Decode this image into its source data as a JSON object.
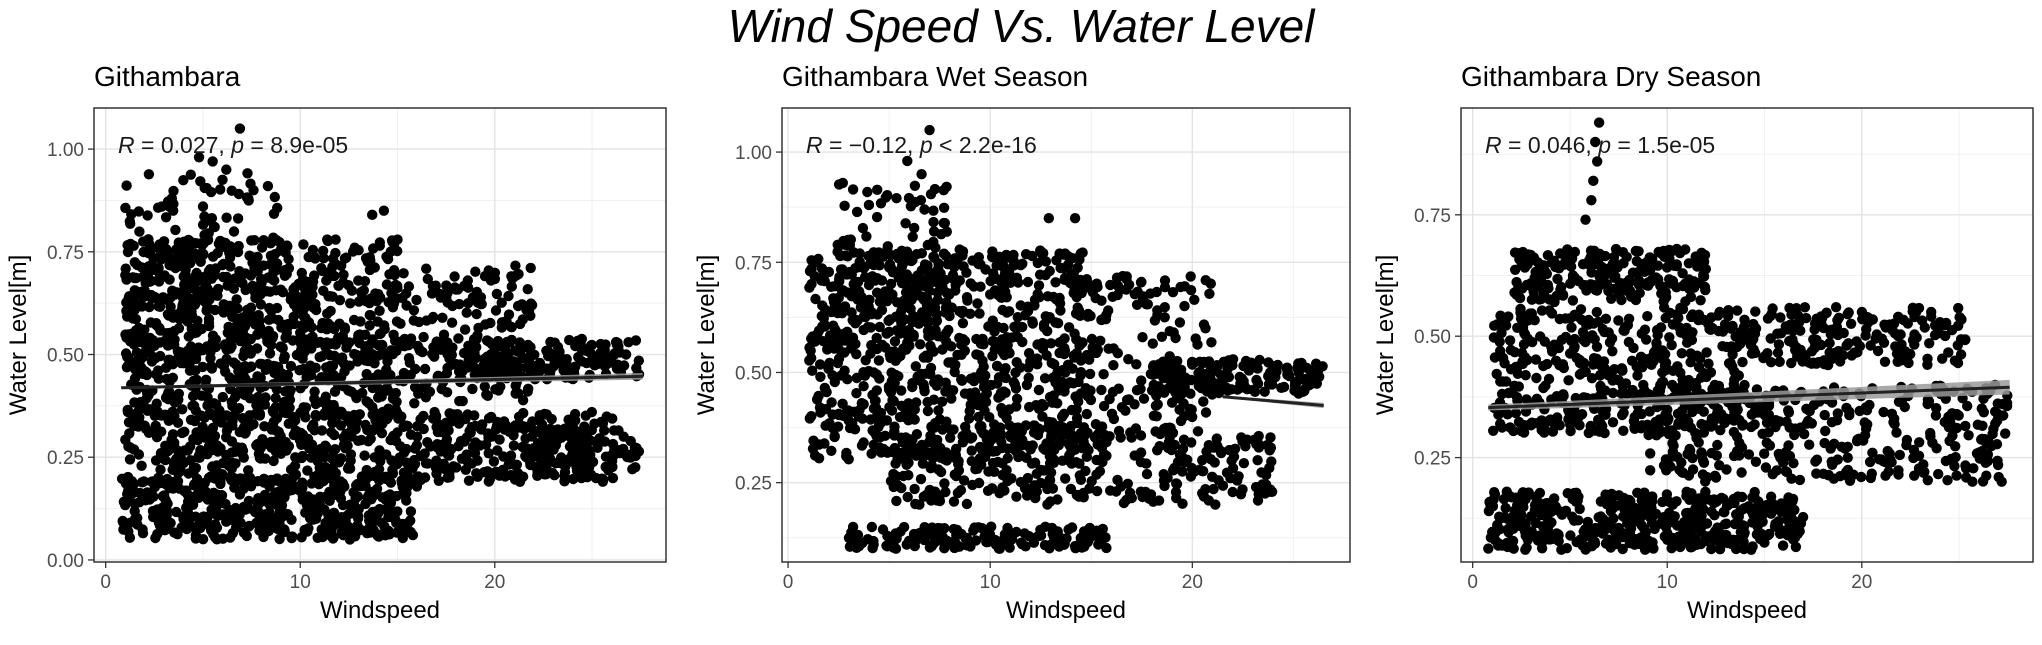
{
  "title": "Wind Speed Vs. Water Level",
  "chart_data": [
    {
      "type": "scatter",
      "title": "Githambara",
      "xlabel": "Windspeed",
      "ylabel": "Water Level[m]",
      "xlim": [
        -0.6,
        28.8
      ],
      "ylim": [
        -0.005,
        1.1
      ],
      "xticks": [
        0,
        10,
        20
      ],
      "xtick_labels": [
        "0",
        "10",
        "20"
      ],
      "yticks": [
        0,
        0.25,
        0.5,
        0.75,
        1.0
      ],
      "ytick_labels": [
        "0.00",
        "0.25",
        "0.50",
        "0.75",
        "1.00"
      ],
      "annotation": {
        "R": "0.027",
        "p_op": "=",
        "p": "8.9e-05"
      },
      "fit": {
        "x": [
          0.8,
          27.6
        ],
        "y": [
          0.419,
          0.447
        ],
        "ci": 0.008
      },
      "clusters": [
        {
          "x": [
            1.0,
            15.0
          ],
          "y": [
            0.35,
            0.78
          ],
          "n": 800
        },
        {
          "x": [
            1.0,
            9.0
          ],
          "y": [
            0.45,
            0.95
          ],
          "n": 140
        },
        {
          "x": [
            15.0,
            22.0
          ],
          "y": [
            0.38,
            0.72
          ],
          "n": 180
        },
        {
          "x": [
            18.0,
            27.5
          ],
          "y": [
            0.44,
            0.54
          ],
          "n": 170
        },
        {
          "x": [
            1.0,
            26.5
          ],
          "y": [
            0.19,
            0.36
          ],
          "n": 600
        },
        {
          "x": [
            0.8,
            16.0
          ],
          "y": [
            0.05,
            0.2
          ],
          "n": 420
        },
        {
          "x": [
            22.0,
            27.5
          ],
          "y": [
            0.22,
            0.3
          ],
          "n": 60
        }
      ],
      "outliers": [
        {
          "x": 6.9,
          "y": 1.05
        },
        {
          "x": 4.8,
          "y": 0.98
        },
        {
          "x": 6.2,
          "y": 0.95
        },
        {
          "x": 5.5,
          "y": 0.97
        },
        {
          "x": 14.3,
          "y": 0.85
        },
        {
          "x": 13.7,
          "y": 0.84
        },
        {
          "x": 3.4,
          "y": 0.88
        },
        {
          "x": 7.6,
          "y": 0.9
        }
      ]
    },
    {
      "type": "scatter",
      "title": "Githambara Wet Season",
      "xlabel": "Windspeed",
      "ylabel": "Water Level[m]",
      "xlim": [
        -0.3,
        27.8
      ],
      "ylim": [
        0.07,
        1.1
      ],
      "xticks": [
        0,
        10,
        20
      ],
      "xtick_labels": [
        "0",
        "10",
        "20"
      ],
      "yticks": [
        0.25,
        0.5,
        0.75,
        1.0
      ],
      "ytick_labels": [
        "0.25",
        "0.50",
        "0.75",
        "1.00"
      ],
      "annotation": {
        "R": "−0.12",
        "p_op": "<",
        "p": "2.2e-16"
      },
      "fit": {
        "x": [
          21.5,
          26.5
        ],
        "y": [
          0.445,
          0.425
        ],
        "ci": 0.006
      },
      "clusters": [
        {
          "x": [
            1.0,
            15.0
          ],
          "y": [
            0.3,
            0.78
          ],
          "n": 800
        },
        {
          "x": [
            2.0,
            8.0
          ],
          "y": [
            0.55,
            0.95
          ],
          "n": 120
        },
        {
          "x": [
            13.0,
            21.0
          ],
          "y": [
            0.35,
            0.72
          ],
          "n": 180
        },
        {
          "x": [
            18.0,
            26.5
          ],
          "y": [
            0.45,
            0.53
          ],
          "n": 150
        },
        {
          "x": [
            5.0,
            24.0
          ],
          "y": [
            0.2,
            0.36
          ],
          "n": 300
        },
        {
          "x": [
            3.0,
            16.0
          ],
          "y": [
            0.1,
            0.15
          ],
          "n": 160
        }
      ],
      "outliers": [
        {
          "x": 7.0,
          "y": 1.05
        },
        {
          "x": 5.9,
          "y": 0.98
        },
        {
          "x": 12.9,
          "y": 0.85
        },
        {
          "x": 14.2,
          "y": 0.85
        },
        {
          "x": 4.0,
          "y": 0.88
        }
      ]
    },
    {
      "type": "scatter",
      "title": "Githambara Dry Season",
      "xlabel": "Windspeed",
      "ylabel": "Water Level[m]",
      "xlim": [
        -0.6,
        28.8
      ],
      "ylim": [
        0.035,
        0.97
      ],
      "xticks": [
        0,
        10,
        20
      ],
      "xtick_labels": [
        "0",
        "10",
        "20"
      ],
      "yticks": [
        0.25,
        0.5,
        0.75
      ],
      "ytick_labels": [
        "0.25",
        "0.50",
        "0.75"
      ],
      "annotation": {
        "R": "0.046",
        "p_op": "=",
        "p": "1.5e-05"
      },
      "fit": {
        "x": [
          0.8,
          27.6
        ],
        "y": [
          0.353,
          0.395
        ],
        "ci": 0.015
      },
      "clusters": [
        {
          "x": [
            2.0,
            12.0
          ],
          "y": [
            0.57,
            0.68
          ],
          "n": 220
        },
        {
          "x": [
            1.0,
            25.5
          ],
          "y": [
            0.44,
            0.56
          ],
          "n": 380
        },
        {
          "x": [
            1.0,
            14.0
          ],
          "y": [
            0.3,
            0.45
          ],
          "n": 250
        },
        {
          "x": [
            9.0,
            27.5
          ],
          "y": [
            0.2,
            0.4
          ],
          "n": 360
        },
        {
          "x": [
            0.8,
            17.0
          ],
          "y": [
            0.06,
            0.18
          ],
          "n": 450
        }
      ],
      "outliers": [
        {
          "x": 6.5,
          "y": 0.94
        },
        {
          "x": 6.3,
          "y": 0.9
        },
        {
          "x": 6.4,
          "y": 0.86
        },
        {
          "x": 6.2,
          "y": 0.82
        },
        {
          "x": 6.1,
          "y": 0.78
        },
        {
          "x": 5.8,
          "y": 0.74
        }
      ]
    }
  ]
}
